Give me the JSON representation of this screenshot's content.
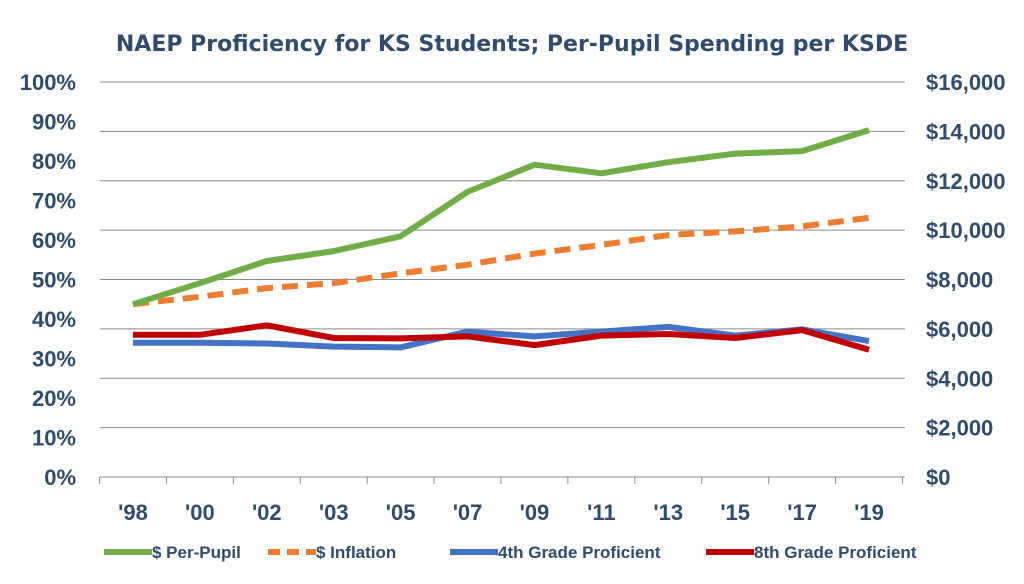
{
  "chart_data": {
    "type": "line",
    "title": "NAEP Proficiency for KS Students; Per-Pupil Spending per KSDE",
    "categories": [
      "'98",
      "'00",
      "'02",
      "'03",
      "'05",
      "'07",
      "'09",
      "'11",
      "'13",
      "'15",
      "'17",
      "'19"
    ],
    "y_left": {
      "ylim": [
        0,
        100
      ],
      "ticks": [
        0,
        10,
        20,
        30,
        40,
        50,
        60,
        70,
        80,
        90,
        100
      ],
      "tick_labels": [
        "0%",
        "10%",
        "20%",
        "30%",
        "40%",
        "50%",
        "60%",
        "70%",
        "80%",
        "90%",
        "100%"
      ]
    },
    "y_right": {
      "ylim": [
        0,
        16000
      ],
      "ticks": [
        0,
        2000,
        4000,
        6000,
        8000,
        10000,
        12000,
        14000,
        16000
      ],
      "tick_labels": [
        "$0",
        "$2,000",
        "$4,000",
        "$6,000",
        "$8,000",
        "$10,000",
        "$12,000",
        "$14,000",
        "$16,000"
      ]
    },
    "grid": true,
    "legend_position": "bottom",
    "series": [
      {
        "name": "$ Per-Pupil",
        "axis": "right",
        "color": "#70ad47",
        "dashed": false,
        "values": [
          7000,
          7850,
          8750,
          9150,
          9750,
          11550,
          12650,
          12300,
          12750,
          13100,
          13200,
          14050
        ]
      },
      {
        "name": "$ Inflation",
        "axis": "right",
        "color": "#ed7d31",
        "dashed": true,
        "values": [
          7000,
          7300,
          7650,
          7850,
          8250,
          8600,
          9050,
          9400,
          9800,
          9950,
          10150,
          10500
        ]
      },
      {
        "name": "4th Grade Proficient",
        "axis": "left",
        "color": "#4472c4",
        "dashed": false,
        "values": [
          34,
          34,
          33.8,
          33,
          32.8,
          36.8,
          35.6,
          36.8,
          38,
          35.8,
          37.4,
          34.4
        ]
      },
      {
        "name": "8th Grade Proficient",
        "axis": "left",
        "color": "#c00000",
        "dashed": false,
        "values": [
          36,
          36,
          38.4,
          35.2,
          35.1,
          35.6,
          33.4,
          35.8,
          36.2,
          35.2,
          37.2,
          32.2
        ]
      }
    ]
  }
}
